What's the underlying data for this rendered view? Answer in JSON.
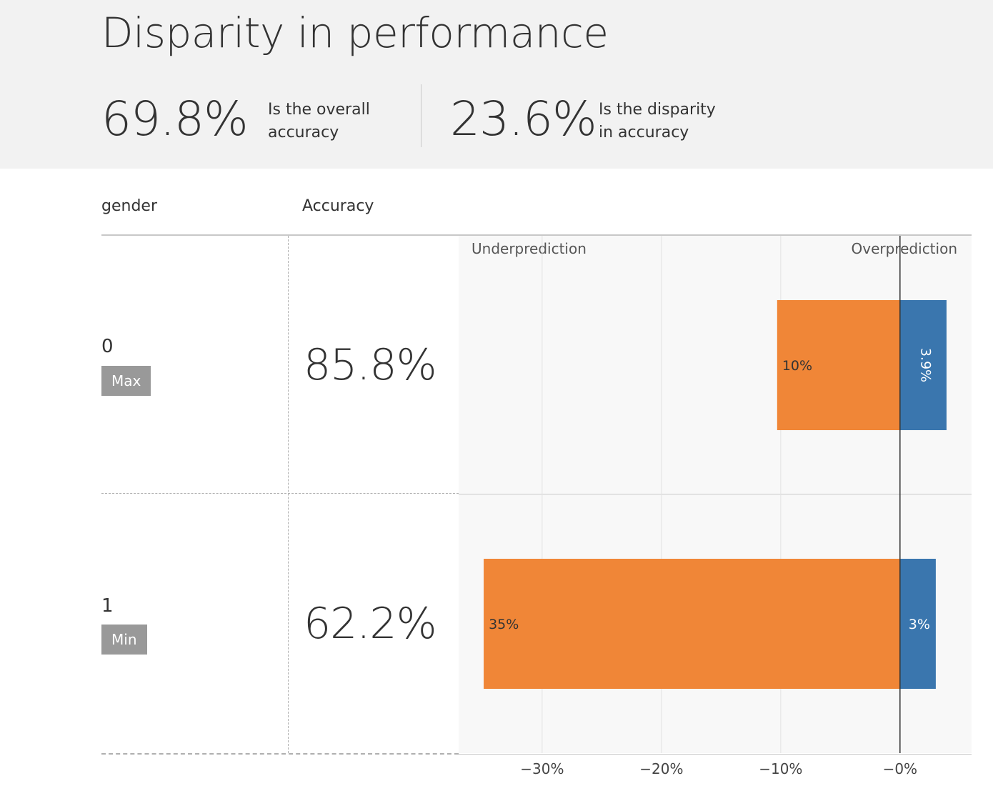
{
  "header": {
    "title": "Disparity in performance",
    "overall_accuracy_value": "69.8%",
    "overall_accuracy_desc": "Is the overall accuracy",
    "disparity_value": "23.6%",
    "disparity_desc": "Is the disparity in accuracy"
  },
  "table": {
    "group_column_header": "gender",
    "accuracy_column_header": "Accuracy",
    "rows": [
      {
        "group": "0",
        "badge": "Max",
        "accuracy": "85.8%"
      },
      {
        "group": "1",
        "badge": "Min",
        "accuracy": "62.2%"
      }
    ]
  },
  "colors": {
    "underprediction": "#f08637",
    "overprediction": "#3a76ae",
    "header_background": "#f2f2f2",
    "badge": "#999999"
  },
  "chart_data": {
    "type": "bar",
    "orientation": "horizontal",
    "stacked": "diverging",
    "categories": [
      "0",
      "1"
    ],
    "series": [
      {
        "name": "Underprediction",
        "values": [
          -10.3,
          -34.9
        ],
        "labels": [
          "10%",
          "35%"
        ]
      },
      {
        "name": "Overprediction",
        "values": [
          3.9,
          3.0
        ],
        "labels": [
          "3.9%",
          "3%"
        ]
      }
    ],
    "region_labels": {
      "left": "Underprediction",
      "right": "Overprediction"
    },
    "xlim": [
      -37,
      6
    ],
    "xticks": [
      -30,
      -20,
      -10,
      0
    ],
    "xtick_labels": [
      "−30%",
      "−20%",
      "−10%",
      "−0%"
    ],
    "grid": true
  }
}
